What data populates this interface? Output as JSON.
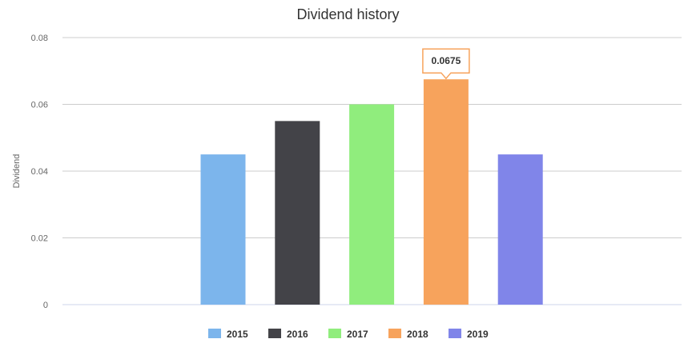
{
  "chart_data": {
    "type": "bar",
    "title": "Dividend history",
    "ylabel": "Dividend",
    "ylim": [
      0,
      0.08
    ],
    "yticks": [
      "0",
      "0.02",
      "0.04",
      "0.06",
      "0.08"
    ],
    "ytick_values": [
      0,
      0.02,
      0.04,
      0.06,
      0.08
    ],
    "grid": true,
    "legend": "bottom",
    "categories": [
      "2015",
      "2016",
      "2017",
      "2018",
      "2019"
    ],
    "values": [
      0.045,
      0.055,
      0.06,
      0.0675,
      0.045
    ],
    "colors": [
      "#7cb5ec",
      "#434348",
      "#90ed7d",
      "#f7a35c",
      "#8085e9"
    ],
    "tooltip": {
      "category": "2018",
      "text": "0.0675",
      "border_color": "#f7a35c"
    }
  }
}
